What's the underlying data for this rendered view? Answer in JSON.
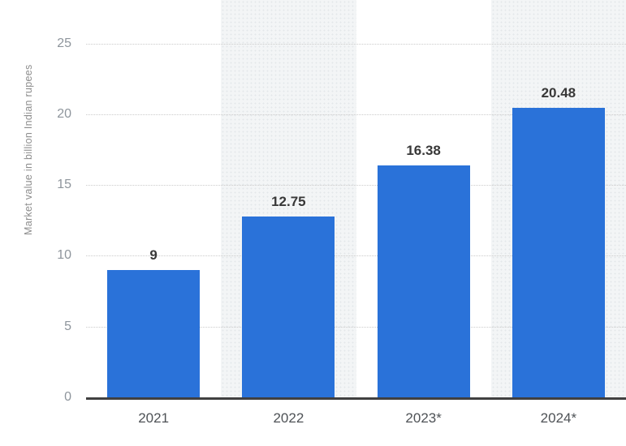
{
  "chart_data": {
    "type": "bar",
    "title": "",
    "categories": [
      "2021",
      "2022",
      "2023*",
      "2024*"
    ],
    "values": [
      9,
      12.75,
      16.38,
      20.48
    ],
    "value_labels": [
      "9",
      "12.75",
      "16.38",
      "20.48"
    ],
    "xlabel": "",
    "ylabel": "Market value in billion Indian rupees",
    "ylim": [
      0,
      25.4
    ],
    "yticks": [
      0,
      5,
      10,
      15,
      20,
      25
    ],
    "grid": "horizontal-dotted",
    "legend": "none",
    "banded_category_indexes": [
      1,
      3
    ],
    "colors": {
      "bar": "#2a72d9",
      "plot_band": "#f3f5f6",
      "plot_band_dots": "#e3e7e9",
      "gridline": "#cbcbcb",
      "axis_line": "#404040",
      "y_tick_label": "#8e959c",
      "x_tick_label": "#4e5256",
      "data_label": "#383838",
      "y_axis_title": "#8d8d8d",
      "background": "#ffffff"
    }
  }
}
